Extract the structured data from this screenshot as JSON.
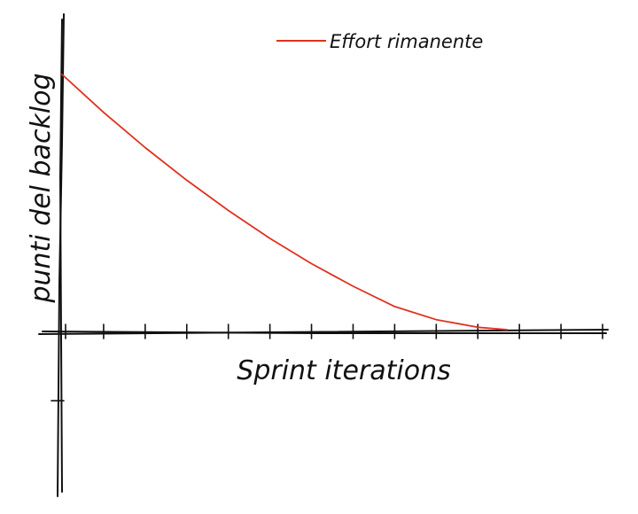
{
  "chart_data": {
    "type": "line",
    "xlabel": "Sprint iterations",
    "ylabel": "punti del backlog",
    "xlim": [
      0,
      13
    ],
    "ylim": [
      -2.8,
      9.7
    ],
    "grid": false,
    "legend_position": "top-right",
    "series": [
      {
        "name": "Effort rimanente",
        "color": "#e0301e",
        "x": [
          0,
          1,
          2,
          3,
          4,
          5,
          6,
          7,
          8,
          9,
          10,
          10.7
        ],
        "y": [
          9.7,
          8.26,
          6.92,
          5.68,
          4.53,
          3.47,
          2.51,
          1.65,
          0.88,
          0.38,
          0.09,
          0
        ]
      }
    ]
  }
}
